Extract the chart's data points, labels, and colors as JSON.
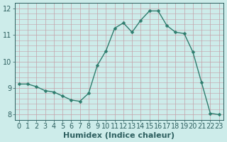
{
  "x": [
    0,
    1,
    2,
    3,
    4,
    5,
    6,
    7,
    8,
    9,
    10,
    11,
    12,
    13,
    14,
    15,
    16,
    17,
    18,
    19,
    20,
    21,
    22,
    23
  ],
  "y": [
    9.15,
    9.15,
    9.05,
    8.9,
    8.85,
    8.7,
    8.55,
    8.5,
    8.8,
    9.85,
    10.4,
    11.25,
    11.45,
    11.1,
    11.55,
    11.9,
    11.9,
    11.35,
    11.1,
    11.05,
    10.35,
    9.2,
    8.05,
    8.0
  ],
  "line_color": "#2e7d6e",
  "marker": "D",
  "marker_size": 2.5,
  "bg_color": "#cdecea",
  "grid_color": "#c4a0a8",
  "xlabel": "Humidex (Indice chaleur)",
  "ylim": [
    7.8,
    12.2
  ],
  "yticks": [
    8,
    9,
    10,
    11,
    12
  ],
  "xlim": [
    -0.5,
    23.5
  ],
  "xticks": [
    0,
    1,
    2,
    3,
    4,
    5,
    6,
    7,
    8,
    9,
    10,
    11,
    12,
    13,
    14,
    15,
    16,
    17,
    18,
    19,
    20,
    21,
    22,
    23
  ],
  "font_color": "#2e6060",
  "font_size": 7,
  "xlabel_fontsize": 8,
  "linewidth": 1.0,
  "minor_yticks_per_major": 5
}
